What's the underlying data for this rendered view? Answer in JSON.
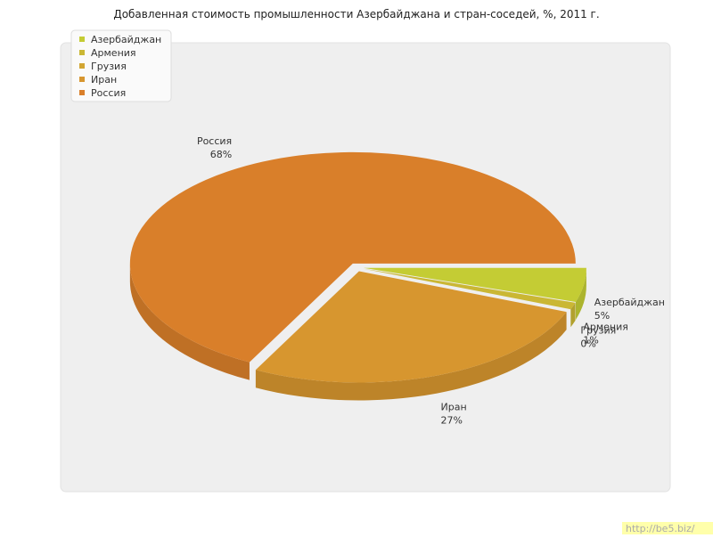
{
  "chart_data": {
    "type": "pie",
    "title": "Добавленная стоимость промышленности Азербайджана и стран-соседей, %, 2011 г.",
    "categories": [
      "Азербайджан",
      "Армения",
      "Грузия",
      "Иран",
      "Россия"
    ],
    "values": [
      5,
      1,
      0,
      27,
      68
    ],
    "value_labels": [
      "5%",
      "1%",
      "0%",
      "27%",
      "68%"
    ],
    "colors": [
      "#c4cc34",
      "#cab734",
      "#d2a532",
      "#d7962f",
      "#d97f2a"
    ],
    "legend": "top-left",
    "watermark": "http://be5.biz/"
  }
}
